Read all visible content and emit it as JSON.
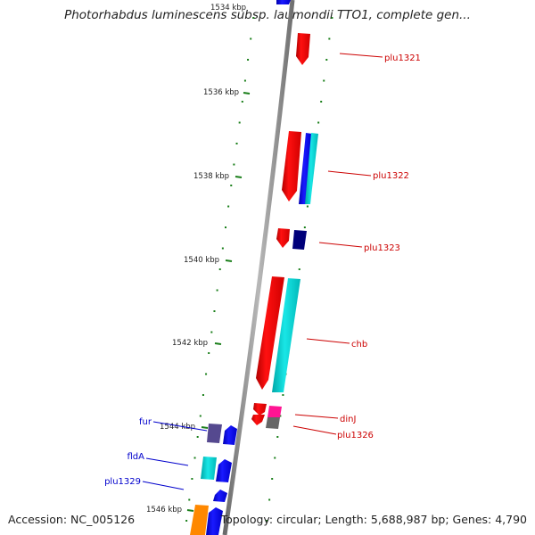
{
  "title": "Photorhabdus luminescens subsp. laumondii TTO1, complete gen...",
  "footer": {
    "accession": "Accession: NC_005126",
    "summary": "Topology: circular; Length: 5,688,987 bp; Genes: 4,790"
  },
  "ticks": [
    "1534 kbp",
    "1536 kbp",
    "1538 kbp",
    "1540 kbp",
    "1542 kbp",
    "1544 kbp",
    "1546 kbp"
  ],
  "genes_right": [
    {
      "name": "plu1321",
      "color": "#cc0000"
    },
    {
      "name": "plu1322",
      "color": "#cc0000"
    },
    {
      "name": "plu1323",
      "color": "#cc0000"
    },
    {
      "name": "chb",
      "color": "#cc0000"
    },
    {
      "name": "dinJ",
      "color": "#cc0000"
    },
    {
      "name": "plu1326",
      "color": "#cc0000"
    }
  ],
  "genes_left": [
    {
      "name": "fur",
      "color": "#0000cc"
    },
    {
      "name": "fldA",
      "color": "#0000cc"
    },
    {
      "name": "plu1329",
      "color": "#0000cc"
    }
  ],
  "colors": {
    "backbone": "#8c8c8c",
    "tick": "#1a7f1a",
    "forward_gene": "#ff0000",
    "reverse_gene": "#0000ff",
    "cyan": "#00dddd",
    "teal": "#10c8c8",
    "navy": "#00007a",
    "purple": "#55498f",
    "magenta": "#ff1493",
    "orange": "#ff8800",
    "grey_gene": "#666666"
  }
}
